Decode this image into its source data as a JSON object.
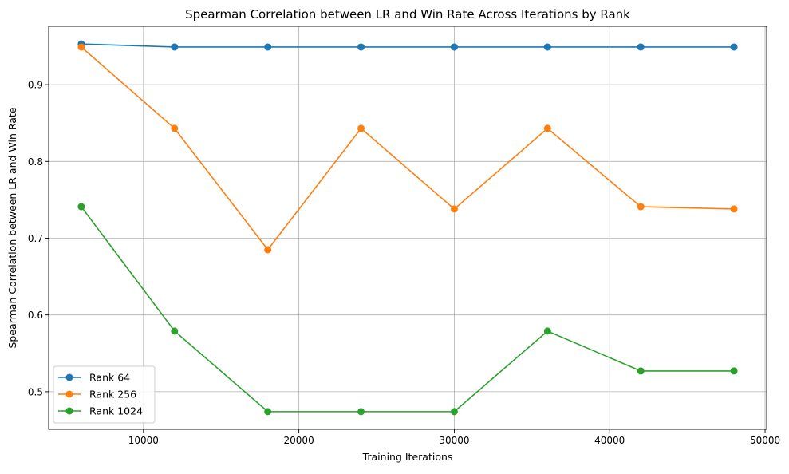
{
  "chart_data": {
    "type": "line",
    "title": "Spearman Correlation between LR and Win Rate Across Iterations by Rank",
    "xlabel": "Training Iterations",
    "ylabel": "Spearman Correlation between LR and Win Rate",
    "xlim": [
      3900,
      50100
    ],
    "ylim": [
      0.451,
      0.976
    ],
    "xticks": [
      10000,
      20000,
      30000,
      40000,
      50000
    ],
    "yticks": [
      0.5,
      0.6,
      0.7,
      0.8,
      0.9
    ],
    "ytick_labels": [
      "0.5",
      "0.6",
      "0.7",
      "0.8",
      "0.9"
    ],
    "grid": true,
    "legend_position": "lower-left",
    "x": [
      6000,
      12000,
      18000,
      24000,
      30000,
      36000,
      42000,
      48000
    ],
    "series": [
      {
        "name": "Rank 64",
        "color": "#1f77b4",
        "values": [
          0.953,
          0.949,
          0.949,
          0.949,
          0.949,
          0.949,
          0.949,
          0.949
        ]
      },
      {
        "name": "Rank 256",
        "color": "#ff7f0e",
        "values": [
          0.949,
          0.843,
          0.685,
          0.843,
          0.738,
          0.843,
          0.741,
          0.738
        ]
      },
      {
        "name": "Rank 1024",
        "color": "#2ca02c",
        "values": [
          0.741,
          0.579,
          0.474,
          0.474,
          0.474,
          0.579,
          0.527,
          0.527
        ]
      }
    ]
  }
}
